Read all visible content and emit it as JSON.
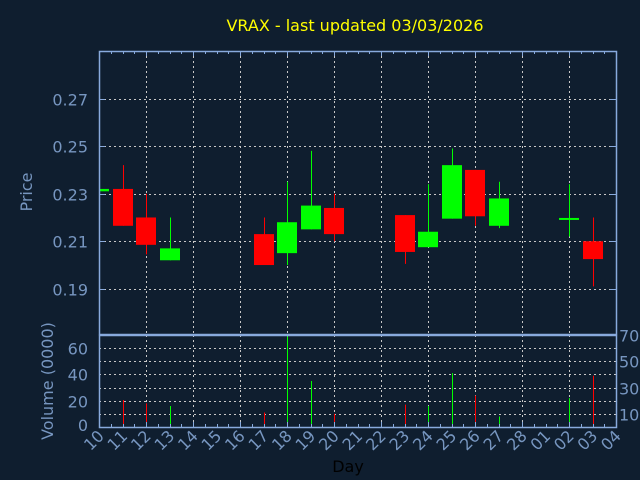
{
  "chart_data": {
    "type": "candlestick",
    "title": "VRAX - last updated 03/03/2026",
    "xlabel": "Day",
    "price_panel": {
      "ylabel": "Price",
      "ylim": [
        0.171,
        0.29
      ],
      "yticks": [
        0.19,
        0.21,
        0.23,
        0.25,
        0.27
      ],
      "ytick_labels": [
        "0.19",
        "0.21",
        "0.23",
        "0.25",
        "0.27"
      ],
      "grid": true
    },
    "volume_panel": {
      "ylabel": "Volume (0000)",
      "ylim": [
        0,
        70
      ],
      "yticks": [
        0,
        10,
        20,
        30,
        40,
        50,
        60,
        70
      ],
      "ytick_labels": [
        "0",
        "10",
        "20",
        "30",
        "40",
        "50",
        "60",
        "70"
      ],
      "grid": true
    },
    "x_range": [
      "2026-02-10",
      "2026-03-04"
    ],
    "xtick_labels": [
      "10",
      "11",
      "12",
      "13",
      "14",
      "15",
      "16",
      "17",
      "18",
      "19",
      "20",
      "21",
      "22",
      "23",
      "24",
      "25",
      "26",
      "27",
      "28",
      "01",
      "02",
      "03",
      "04"
    ],
    "colors": {
      "up": "#00ff00",
      "down": "#ff0000",
      "background": "#0f1e2f",
      "axis": "#88aadd",
      "grid": "#c8c8c8",
      "title": "#ffff00",
      "tick_text": "#7796c0"
    },
    "candles": [
      {
        "date": "2026-02-10",
        "open": 0.231,
        "high": 0.232,
        "low": 0.231,
        "close": 0.232,
        "volume": 0
      },
      {
        "date": "2026-02-11",
        "open": 0.232,
        "high": 0.242,
        "low": 0.2165,
        "close": 0.2165,
        "volume": 20.5
      },
      {
        "date": "2026-02-12",
        "open": 0.22,
        "high": 0.23,
        "low": 0.2045,
        "close": 0.2085,
        "volume": 18
      },
      {
        "date": "2026-02-13",
        "open": 0.202,
        "high": 0.22,
        "low": 0.202,
        "close": 0.207,
        "volume": 16
      },
      {
        "date": "2026-02-17",
        "open": 0.213,
        "high": 0.22,
        "low": 0.2,
        "close": 0.2,
        "volume": 11
      },
      {
        "date": "2026-02-18",
        "open": 0.205,
        "high": 0.235,
        "low": 0.2,
        "close": 0.218,
        "volume": 69
      },
      {
        "date": "2026-02-19",
        "open": 0.215,
        "high": 0.248,
        "low": 0.215,
        "close": 0.225,
        "volume": 35
      },
      {
        "date": "2026-02-20",
        "open": 0.224,
        "high": 0.23,
        "low": 0.21,
        "close": 0.213,
        "volume": 10
      },
      {
        "date": "2026-02-23",
        "open": 0.221,
        "high": 0.221,
        "low": 0.2005,
        "close": 0.2055,
        "volume": 17
      },
      {
        "date": "2026-02-24",
        "open": 0.2075,
        "high": 0.234,
        "low": 0.2075,
        "close": 0.214,
        "volume": 16
      },
      {
        "date": "2026-02-25",
        "open": 0.2195,
        "high": 0.249,
        "low": 0.2195,
        "close": 0.242,
        "volume": 41
      },
      {
        "date": "2026-02-26",
        "open": 0.24,
        "high": 0.24,
        "low": 0.2165,
        "close": 0.2205,
        "volume": 24
      },
      {
        "date": "2026-02-27",
        "open": 0.2165,
        "high": 0.235,
        "low": 0.2155,
        "close": 0.228,
        "volume": 8
      },
      {
        "date": "2026-03-02",
        "open": 0.2195,
        "high": 0.234,
        "low": 0.212,
        "close": 0.2198,
        "volume": 22
      },
      {
        "date": "2026-03-03",
        "open": 0.21,
        "high": 0.22,
        "low": 0.191,
        "close": 0.2025,
        "volume": 39
      }
    ]
  }
}
